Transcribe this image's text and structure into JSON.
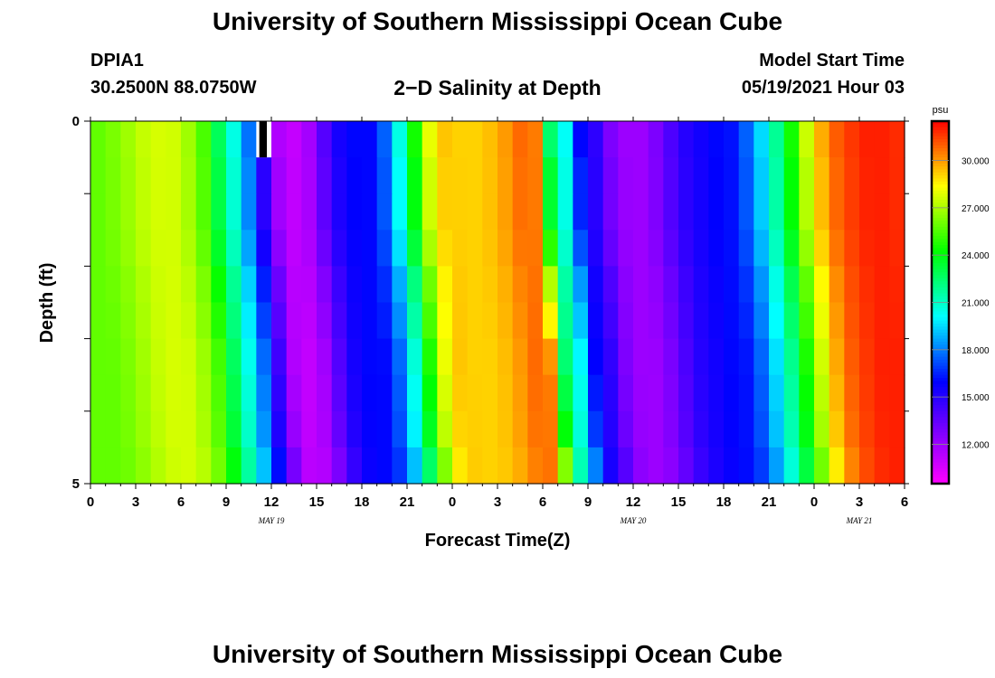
{
  "header": {
    "title": "University of Southern Mississippi Ocean Cube",
    "station": "DPIA1",
    "coords": "30.2500N  88.0750W",
    "subtitle": "2−D Salinity at Depth",
    "start_label": "Model Start Time",
    "start_value": "05/19/2021 Hour 03"
  },
  "footer": {
    "title": "University of Southern Mississippi Ocean Cube"
  },
  "chart_data": {
    "type": "heatmap",
    "title": "2−D Salinity at Depth",
    "xlabel": "Forecast Time(Z)",
    "ylabel": "Depth (ft)",
    "x_range_hours": [
      0,
      54
    ],
    "x_tick_labels": [
      "0",
      "3",
      "6",
      "9",
      "12",
      "15",
      "18",
      "21",
      "0",
      "3",
      "6",
      "9",
      "12",
      "15",
      "18",
      "21",
      "0",
      "3",
      "6"
    ],
    "day_labels": [
      {
        "hour": 12,
        "text": "MAY 19"
      },
      {
        "hour": 36,
        "text": "MAY 20"
      },
      {
        "hour": 51,
        "text": "MAY 21"
      }
    ],
    "ylim": [
      0,
      5
    ],
    "y_tick_labels": [
      {
        "depth": 0,
        "text": "0"
      },
      {
        "depth": 5,
        "text": "5"
      }
    ],
    "colorbar": {
      "unit": "psu",
      "range": [
        9.5,
        32.5
      ],
      "tick_values": [
        12,
        15,
        18,
        21,
        24,
        27,
        30
      ],
      "tick_labels": [
        "12.000",
        "15.000",
        "18.000",
        "21.000",
        "24.000",
        "27.000",
        "30.000"
      ]
    },
    "time_hours": [
      0,
      1,
      2,
      3,
      4,
      5,
      6,
      7,
      8,
      9,
      10,
      11,
      12,
      13,
      14,
      15,
      16,
      17,
      18,
      19,
      20,
      21,
      22,
      23,
      24,
      25,
      26,
      27,
      28,
      29,
      30,
      31,
      32,
      33,
      34,
      35,
      36,
      37,
      38,
      39,
      40,
      41,
      42,
      43,
      44,
      45,
      46,
      47,
      48,
      49,
      50,
      51,
      52,
      53
    ],
    "surface_salinity_psu": [
      25.8,
      26.2,
      26.8,
      27.4,
      27.7,
      27.6,
      26.8,
      25.4,
      22.8,
      20.5,
      17.8,
      14.5,
      11.5,
      11.0,
      11.8,
      13.8,
      15.4,
      16.0,
      16.0,
      17.5,
      20.5,
      24.5,
      28.0,
      29.3,
      29.1,
      29.1,
      29.4,
      30.0,
      30.8,
      30.5,
      22.5,
      20.2,
      16.0,
      14.8,
      12.8,
      12.0,
      12.0,
      12.8,
      14.0,
      15.0,
      15.5,
      16.0,
      16.2,
      17.5,
      19.5,
      21.8,
      24.5,
      27.5,
      29.7,
      31.0,
      31.6,
      32.0,
      32.0,
      31.8
    ],
    "depth_layer_shift_hours": [
      0,
      0.12,
      0.12,
      0.3,
      0.58,
      0.75,
      0.95,
      1.08,
      1.2,
      1.48
    ],
    "masked_cells": [
      {
        "hour": 11,
        "layer": 0
      }
    ]
  }
}
